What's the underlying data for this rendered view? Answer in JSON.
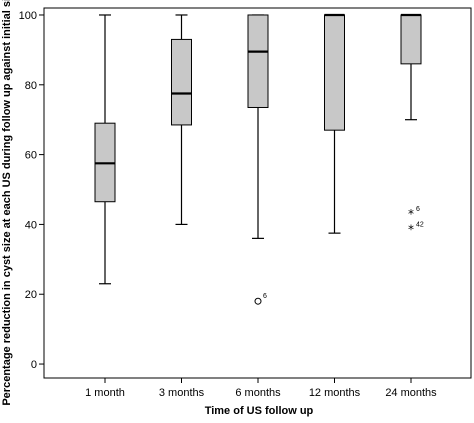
{
  "chart_data": {
    "type": "boxplot",
    "title": "",
    "xlabel": "Time of US follow up",
    "ylabel": "Percentage reduction in cyst size at each US during follow up against initial size",
    "ylim": [
      -4,
      102
    ],
    "yticks": [
      0,
      20,
      40,
      60,
      80,
      100
    ],
    "grid": false,
    "box_color": "#c8c8c8",
    "categories": [
      "1 month",
      "3 months",
      "6 months",
      "12 months",
      "24 months"
    ],
    "boxes": [
      {
        "category": "1 month",
        "whisker_low": 23,
        "q1": 46.5,
        "median": 57.5,
        "q3": 69,
        "whisker_high": 100,
        "outliers": []
      },
      {
        "category": "3 months",
        "whisker_low": 40,
        "q1": 68.5,
        "median": 77.5,
        "q3": 93,
        "whisker_high": 100,
        "outliers": []
      },
      {
        "category": "6 months",
        "whisker_low": 36,
        "q1": 73.5,
        "median": 89.5,
        "q3": 100,
        "whisker_high": 100,
        "outliers": [
          {
            "value": 18,
            "marker": "circle",
            "label": "6"
          }
        ]
      },
      {
        "category": "12 months",
        "whisker_low": 37.5,
        "q1": 67,
        "median": 100,
        "q3": 100,
        "whisker_high": 100,
        "outliers": []
      },
      {
        "category": "24 months",
        "whisker_low": 70,
        "q1": 86,
        "median": 100,
        "q3": 100,
        "whisker_high": 100,
        "outliers": [
          {
            "value": 43,
            "marker": "star",
            "label": "6"
          },
          {
            "value": 38.5,
            "marker": "star",
            "label": "42"
          }
        ]
      }
    ]
  }
}
